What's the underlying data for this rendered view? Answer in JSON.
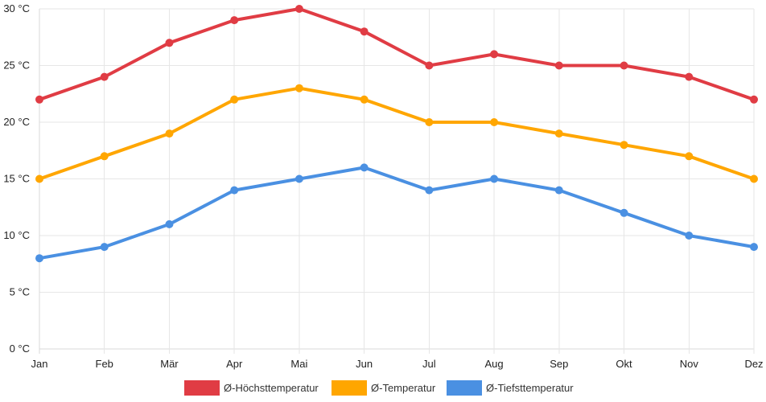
{
  "chart_data": {
    "type": "line",
    "title": "",
    "xlabel": "",
    "ylabel": "",
    "y_unit": "°C",
    "ylim": [
      0,
      30
    ],
    "y_ticks": [
      0,
      5,
      10,
      15,
      20,
      25,
      30
    ],
    "y_tick_labels": [
      "0 °C",
      "5 °C",
      "10 °C",
      "15 °C",
      "20 °C",
      "25 °C",
      "30 °C"
    ],
    "grid": true,
    "legend_position": "bottom-center",
    "categories": [
      "Jan",
      "Feb",
      "Mär",
      "Apr",
      "Mai",
      "Jun",
      "Jul",
      "Aug",
      "Sep",
      "Okt",
      "Nov",
      "Dez"
    ],
    "series": [
      {
        "name": "Ø-Höchsttemperatur",
        "color": "#e03c44",
        "values": [
          22,
          24,
          27,
          29,
          30,
          28,
          25,
          26,
          25,
          25,
          24,
          22
        ]
      },
      {
        "name": "Ø-Temperatur",
        "color": "#ffa600",
        "values": [
          15,
          17,
          19,
          22,
          23,
          22,
          20,
          20,
          19,
          18,
          17,
          15
        ]
      },
      {
        "name": "Ø-Tiefsttemperatur",
        "color": "#4a90e2",
        "values": [
          8,
          9,
          11,
          14,
          15,
          16,
          14,
          15,
          14,
          12,
          10,
          9
        ]
      }
    ]
  }
}
